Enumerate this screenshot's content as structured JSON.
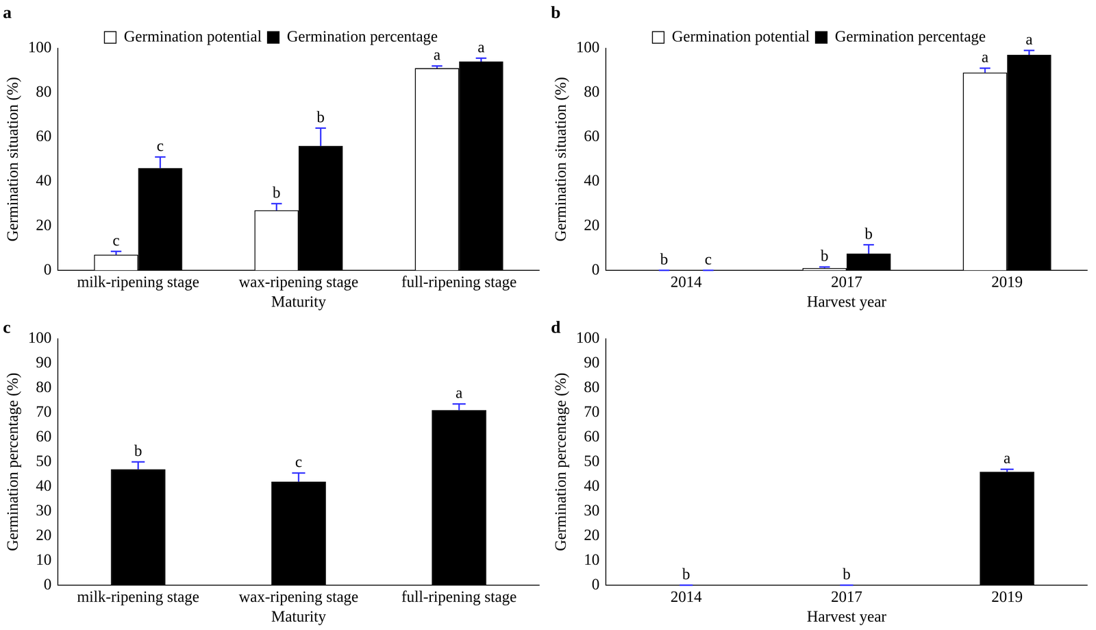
{
  "chart_data": [
    {
      "type": "bar",
      "title": "a",
      "x_label": "Maturity",
      "y_label": "Germination situation (%)",
      "categories": [
        "milk-ripening stage",
        "wax-ripening stage",
        "full-ripening stage"
      ],
      "series": [
        {
          "name": "Germination potential",
          "color": "#ffffff",
          "values": [
            7,
            27,
            91
          ],
          "errors": [
            1.5,
            3,
            1
          ],
          "letters": [
            "c",
            "b",
            "a"
          ]
        },
        {
          "name": "Germination percentage",
          "color": "#000000",
          "values": [
            46,
            56,
            94
          ],
          "errors": [
            5,
            8,
            1.5
          ],
          "letters": [
            "c",
            "b",
            "a"
          ]
        }
      ],
      "ylim": [
        0,
        100
      ],
      "yticks": [
        0,
        20,
        40,
        60,
        80,
        100
      ],
      "grid": false,
      "legend": "top"
    },
    {
      "type": "bar",
      "title": "b",
      "x_label": "Harvest year",
      "y_label": "Germination situation (%)",
      "categories": [
        "2014",
        "2017",
        "2019"
      ],
      "series": [
        {
          "name": "Germination potential",
          "color": "#ffffff",
          "values": [
            0,
            1,
            89
          ],
          "errors": [
            0,
            0.5,
            2
          ],
          "letters": [
            "b",
            "b",
            "a"
          ]
        },
        {
          "name": "Germination percentage",
          "color": "#000000",
          "values": [
            0,
            7.5,
            97
          ],
          "errors": [
            0,
            4,
            2
          ],
          "letters": [
            "c",
            "b",
            "a"
          ]
        }
      ],
      "ylim": [
        0,
        100
      ],
      "yticks": [
        0,
        20,
        40,
        60,
        80,
        100
      ],
      "grid": false,
      "legend": "top"
    },
    {
      "type": "bar",
      "title": "c",
      "x_label": "Maturity",
      "y_label": "Germination percentage (%)",
      "categories": [
        "milk-ripening stage",
        "wax-ripening stage",
        "full-ripening stage"
      ],
      "series": [
        {
          "color": "#000000",
          "values": [
            47,
            42,
            71
          ],
          "errors": [
            3,
            3.5,
            2.5
          ],
          "letters": [
            "b",
            "c",
            "a"
          ]
        }
      ],
      "ylim": [
        0,
        100
      ],
      "yticks": [
        0,
        10,
        20,
        30,
        40,
        50,
        60,
        70,
        80,
        90,
        100
      ],
      "grid": false
    },
    {
      "type": "bar",
      "title": "d",
      "x_label": "Harvest year",
      "y_label": "Germination percentage (%)",
      "categories": [
        "2014",
        "2017",
        "2019"
      ],
      "series": [
        {
          "color": "#000000",
          "values": [
            0,
            0,
            46
          ],
          "errors": [
            0,
            0,
            1
          ],
          "letters": [
            "b",
            "b",
            "a"
          ]
        }
      ],
      "ylim": [
        0,
        100
      ],
      "yticks": [
        0,
        10,
        20,
        30,
        40,
        50,
        60,
        70,
        80,
        90,
        100
      ],
      "grid": false
    }
  ]
}
